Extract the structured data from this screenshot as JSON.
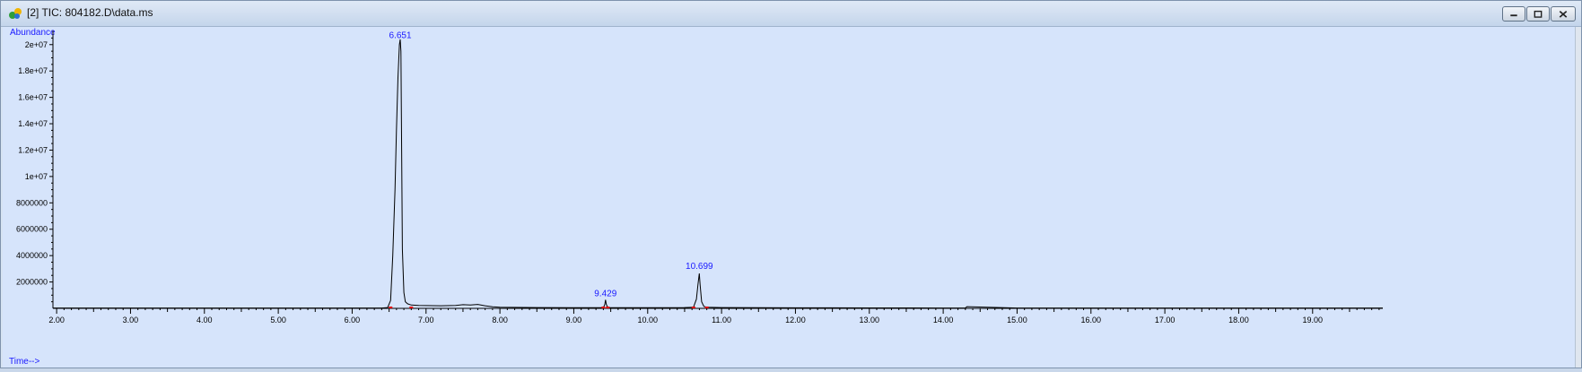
{
  "window": {
    "title": "[2] TIC: 804182.D\\data.ms",
    "icon": "chromatogram-app-icon",
    "controls": [
      "minimize",
      "maximize",
      "close"
    ]
  },
  "colors": {
    "plot_background": "#d6e4fb",
    "trace": "#000000",
    "labels": "#1a1aff",
    "baseline_markers": "#e00000"
  },
  "chart_data": {
    "type": "line",
    "ylabel": "Abundance",
    "xlabel": "Time-->",
    "xlim": [
      1.95,
      19.95
    ],
    "ylim": [
      0,
      20800000
    ],
    "x_ticks": [
      2.0,
      3.0,
      4.0,
      5.0,
      6.0,
      7.0,
      8.0,
      9.0,
      10.0,
      11.0,
      12.0,
      13.0,
      14.0,
      15.0,
      16.0,
      17.0,
      18.0,
      19.0
    ],
    "x_tick_labels": [
      "2.00",
      "3.00",
      "4.00",
      "5.00",
      "6.00",
      "7.00",
      "8.00",
      "9.00",
      "10.00",
      "11.00",
      "12.00",
      "13.00",
      "14.00",
      "15.00",
      "16.00",
      "17.00",
      "18.00",
      "19.00"
    ],
    "y_ticks": [
      2000000,
      4000000,
      6000000,
      8000000,
      10000000,
      12000000,
      14000000,
      16000000,
      18000000,
      20000000
    ],
    "y_tick_labels": [
      "2000000",
      "4000000",
      "6000000",
      "8000000",
      "1e+07",
      "1.2e+07",
      "1.4e+07",
      "1.6e+07",
      "1.8e+07",
      "2e+07"
    ],
    "peak_labels": [
      {
        "label": "6.651",
        "x": 6.651,
        "y": 20300000
      },
      {
        "label": "9.429",
        "x": 9.429,
        "y": 700000
      },
      {
        "label": "10.699",
        "x": 10.699,
        "y": 2800000
      }
    ],
    "baseline_markers_x": [
      6.52,
      6.8,
      9.4,
      9.46,
      10.62,
      10.8
    ],
    "series": [
      {
        "x": [
          1.95,
          6.4,
          6.48,
          6.52,
          6.55,
          6.58,
          6.6,
          6.62,
          6.64,
          6.651,
          6.66,
          6.67,
          6.68,
          6.7,
          6.72,
          6.75,
          6.8,
          6.9,
          7.0,
          7.2,
          7.4,
          7.5,
          7.6,
          7.7,
          7.8,
          7.9,
          8.0,
          8.5,
          9.0,
          9.4,
          9.42,
          9.429,
          9.44,
          9.46,
          9.5,
          10.0,
          10.5,
          10.62,
          10.66,
          10.68,
          10.699,
          10.71,
          10.73,
          10.76,
          10.8,
          11.0,
          11.5,
          12.0,
          12.5,
          13.0,
          14.0,
          14.3,
          14.32,
          15.0,
          16.0,
          17.0,
          18.0,
          19.0,
          19.95
        ],
        "y": [
          30000,
          30000,
          60000,
          600000,
          4000000,
          9000000,
          13500000,
          17500000,
          20000000,
          20400000,
          19500000,
          12000000,
          4500000,
          1200000,
          500000,
          350000,
          250000,
          220000,
          210000,
          200000,
          220000,
          280000,
          250000,
          300000,
          200000,
          120000,
          80000,
          60000,
          50000,
          50000,
          300000,
          650000,
          300000,
          60000,
          50000,
          50000,
          60000,
          80000,
          700000,
          1800000,
          2650000,
          1800000,
          500000,
          150000,
          90000,
          60000,
          50000,
          40000,
          40000,
          35000,
          30000,
          30000,
          130000,
          30000,
          25000,
          25000,
          25000,
          25000,
          25000
        ]
      }
    ]
  }
}
